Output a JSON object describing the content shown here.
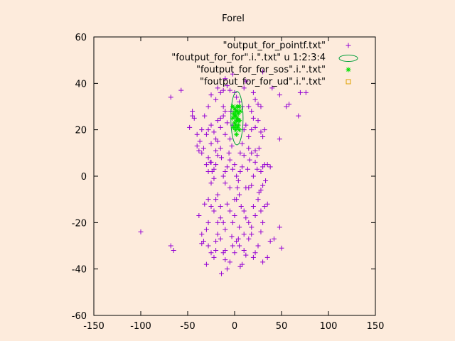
{
  "colors": {
    "background": "#fdebdc",
    "frame": "#000000",
    "points": "#9400d3",
    "ellipses": "#009e39",
    "sos": "#00e000",
    "ud": "#e0a000"
  },
  "chart_data": {
    "type": "scatter",
    "title": "Forel",
    "xlabel": "",
    "ylabel": "",
    "xlim": [
      -150,
      150
    ],
    "ylim": [
      -60,
      60
    ],
    "x_ticks": [
      -150,
      -100,
      -50,
      0,
      50,
      100,
      150
    ],
    "y_ticks": [
      -60,
      -40,
      -20,
      0,
      20,
      40,
      60
    ],
    "grid": false,
    "legend_position": "top-right",
    "series": [
      {
        "name": "\"output_for_pointf.txt\"",
        "marker": "plus",
        "points": [
          [
            -100,
            -24
          ],
          [
            -68,
            -30
          ],
          [
            -65,
            -32
          ],
          [
            -68,
            34
          ],
          [
            -57,
            37
          ],
          [
            -48,
            21
          ],
          [
            -45,
            26
          ],
          [
            -45,
            28
          ],
          [
            -43,
            25
          ],
          [
            -37,
            15
          ],
          [
            -35,
            10
          ],
          [
            -33,
            12
          ],
          [
            -30,
            5
          ],
          [
            -28,
            2
          ],
          [
            -25,
            -3
          ],
          [
            -38,
            -17
          ],
          [
            -35,
            -25
          ],
          [
            -33,
            -28
          ],
          [
            -30,
            -23
          ],
          [
            -28,
            -30
          ],
          [
            -35,
            -29
          ],
          [
            -30,
            -38
          ],
          [
            -25,
            -33
          ],
          [
            -22,
            -35
          ],
          [
            -20,
            -28
          ],
          [
            -18,
            -25
          ],
          [
            -15,
            -27
          ],
          [
            -12,
            -33
          ],
          [
            -10,
            -32
          ],
          [
            -14,
            -42
          ],
          [
            -10,
            -36
          ],
          [
            -8,
            -40
          ],
          [
            -5,
            -37
          ],
          [
            -2,
            -30
          ],
          [
            0,
            -33
          ],
          [
            2,
            -28
          ],
          [
            4,
            -27
          ],
          [
            5,
            -30
          ],
          [
            6,
            -39
          ],
          [
            8,
            -38
          ],
          [
            10,
            -32
          ],
          [
            12,
            -34
          ],
          [
            15,
            -27
          ],
          [
            18,
            -25
          ],
          [
            20,
            -35
          ],
          [
            22,
            -33
          ],
          [
            25,
            -30
          ],
          [
            28,
            -24
          ],
          [
            30,
            -37
          ],
          [
            35,
            -35
          ],
          [
            38,
            -28
          ],
          [
            42,
            -27
          ],
          [
            48,
            -22
          ],
          [
            50,
            -31
          ],
          [
            -25,
            -13
          ],
          [
            -22,
            -15
          ],
          [
            -20,
            -10
          ],
          [
            -18,
            -8
          ],
          [
            -15,
            -13
          ],
          [
            -12,
            -20
          ],
          [
            -10,
            -23
          ],
          [
            -8,
            -12
          ],
          [
            -5,
            -15
          ],
          [
            -2,
            -20
          ],
          [
            0,
            -17
          ],
          [
            2,
            -10
          ],
          [
            5,
            -8
          ],
          [
            7,
            -13
          ],
          [
            10,
            -15
          ],
          [
            12,
            -18
          ],
          [
            15,
            -20
          ],
          [
            18,
            -22
          ],
          [
            20,
            -13
          ],
          [
            22,
            -17
          ],
          [
            25,
            -10
          ],
          [
            28,
            -15
          ],
          [
            30,
            -20
          ],
          [
            32,
            -13
          ],
          [
            -28,
            8
          ],
          [
            -25,
            6
          ],
          [
            -22,
            3
          ],
          [
            -20,
            5
          ],
          [
            -18,
            9
          ],
          [
            -15,
            12
          ],
          [
            -12,
            0
          ],
          [
            -10,
            -3
          ],
          [
            -8,
            4
          ],
          [
            -5,
            7
          ],
          [
            -2,
            3
          ],
          [
            0,
            5
          ],
          [
            2,
            0
          ],
          [
            4,
            -2
          ],
          [
            6,
            2
          ],
          [
            8,
            4
          ],
          [
            10,
            9
          ],
          [
            12,
            -5
          ],
          [
            14,
            3
          ],
          [
            16,
            7
          ],
          [
            18,
            -4
          ],
          [
            20,
            0
          ],
          [
            22,
            6
          ],
          [
            24,
            3
          ],
          [
            26,
            -7
          ],
          [
            28,
            2
          ],
          [
            30,
            4
          ],
          [
            32,
            5
          ],
          [
            35,
            5
          ],
          [
            38,
            4
          ],
          [
            -30,
            18
          ],
          [
            -28,
            20
          ],
          [
            -25,
            22
          ],
          [
            -22,
            19
          ],
          [
            -20,
            16
          ],
          [
            -18,
            24
          ],
          [
            -15,
            21
          ],
          [
            -12,
            26
          ],
          [
            -10,
            18
          ],
          [
            -8,
            23
          ],
          [
            -5,
            16
          ],
          [
            -3,
            13
          ],
          [
            8,
            14
          ],
          [
            10,
            20
          ],
          [
            12,
            22
          ],
          [
            15,
            17
          ],
          [
            18,
            20
          ],
          [
            20,
            25
          ],
          [
            22,
            21
          ],
          [
            25,
            24
          ],
          [
            28,
            19
          ],
          [
            30,
            17
          ],
          [
            32,
            20
          ],
          [
            48,
            16
          ],
          [
            -40,
            18
          ],
          [
            -35,
            20
          ],
          [
            -32,
            26
          ],
          [
            -28,
            30
          ],
          [
            -25,
            35
          ],
          [
            -20,
            33
          ],
          [
            -18,
            38
          ],
          [
            -15,
            36
          ],
          [
            -12,
            37
          ],
          [
            -10,
            42
          ],
          [
            -8,
            39
          ],
          [
            -5,
            37
          ],
          [
            -2,
            44
          ],
          [
            0,
            36
          ],
          [
            2,
            34
          ],
          [
            5,
            32
          ],
          [
            8,
            30
          ],
          [
            10,
            38
          ],
          [
            12,
            41
          ],
          [
            15,
            30
          ],
          [
            18,
            28
          ],
          [
            20,
            36
          ],
          [
            22,
            33
          ],
          [
            25,
            31
          ],
          [
            28,
            30
          ],
          [
            30,
            45
          ],
          [
            40,
            38
          ],
          [
            48,
            35
          ],
          [
            55,
            30
          ],
          [
            58,
            31
          ],
          [
            68,
            26
          ],
          [
            70,
            36
          ],
          [
            76,
            36
          ],
          [
            -12,
            30
          ],
          [
            -10,
            28
          ],
          [
            -15,
            25
          ],
          [
            -40,
            13
          ],
          [
            -38,
            11
          ],
          [
            -20,
            11
          ],
          [
            -22,
            -1
          ],
          [
            -26,
            6
          ],
          [
            -10,
            2
          ],
          [
            -5,
            -5
          ],
          [
            0,
            -10
          ],
          [
            5,
            -22
          ],
          [
            10,
            -25
          ],
          [
            15,
            -5
          ],
          [
            -15,
            -18
          ],
          [
            -18,
            -20
          ],
          [
            -28,
            -20
          ],
          [
            -20,
            -32
          ],
          [
            -3,
            -26
          ],
          [
            3,
            -5
          ],
          [
            15,
            12
          ],
          [
            18,
            10
          ],
          [
            22,
            11
          ],
          [
            24,
            9
          ],
          [
            26,
            12
          ],
          [
            28,
            -6
          ],
          [
            30,
            -4
          ],
          [
            33,
            -2
          ],
          [
            35,
            -12
          ],
          [
            -18,
            15
          ],
          [
            -24,
            2
          ],
          [
            -14,
            8
          ],
          [
            -6,
            10
          ],
          [
            6,
            10
          ],
          [
            -32,
            -12
          ],
          [
            -28,
            -10
          ],
          [
            -25,
            14
          ],
          [
            -4,
            28
          ],
          [
            -2,
            22
          ]
        ]
      },
      {
        "name": "\"foutput_for_for\".i.\".txt\" u 1:2:3:4",
        "marker": "ellipse",
        "ellipses": [
          {
            "cx": 2.5,
            "cy": 25,
            "w": 13,
            "h": 23
          }
        ]
      },
      {
        "name": "\"foutput_for_for_sos\".i.\".txt\"",
        "marker": "asterisk",
        "points": [
          [
            -2,
            30
          ],
          [
            0,
            29
          ],
          [
            3,
            30
          ],
          [
            5,
            30
          ],
          [
            -1,
            27
          ],
          [
            1,
            28
          ],
          [
            4,
            27
          ],
          [
            6,
            28
          ],
          [
            -2,
            25
          ],
          [
            1,
            26
          ],
          [
            3,
            25
          ],
          [
            5,
            24
          ],
          [
            0,
            23
          ],
          [
            2,
            24
          ],
          [
            4,
            22
          ],
          [
            -1,
            21
          ],
          [
            1,
            20
          ],
          [
            3,
            21
          ],
          [
            5,
            20
          ],
          [
            2,
            18
          ],
          [
            0,
            26
          ],
          [
            3,
            28
          ],
          [
            4,
            24
          ],
          [
            1,
            22
          ]
        ]
      },
      {
        "name": "\"foutput_for_for_ud\".i.\".txt\"",
        "marker": "square",
        "points": []
      }
    ]
  }
}
